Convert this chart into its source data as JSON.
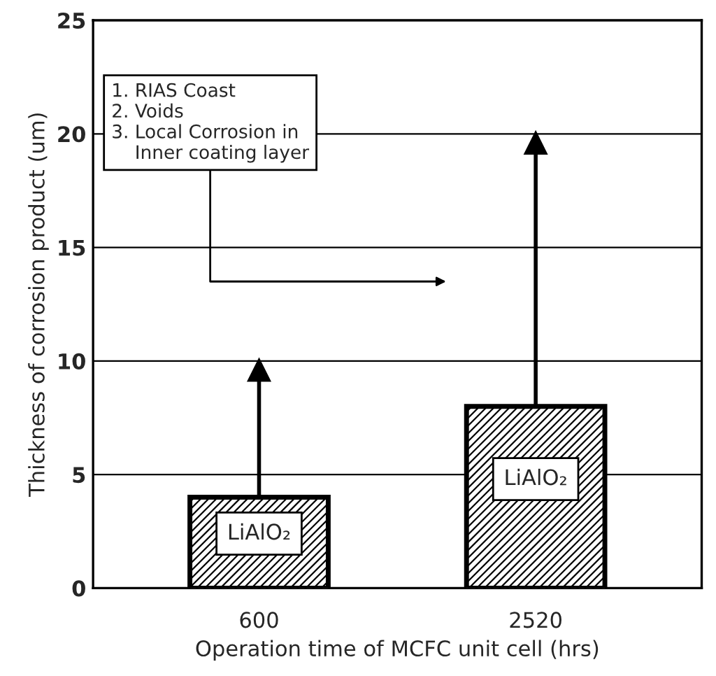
{
  "chart_data": {
    "type": "bar",
    "xlabel": "Operation time of MCFC unit cell (hrs)",
    "ylabel": "Thickness of corrosion product (um)",
    "categories": [
      "600",
      "2520"
    ],
    "values": [
      4,
      8
    ],
    "errors": [
      [
        4,
        10
      ],
      [
        8,
        20
      ]
    ],
    "color": "#000000",
    "ylim": [
      0,
      25
    ],
    "yticks": [
      0,
      5,
      10,
      15,
      20,
      25
    ],
    "grid": "y",
    "annotations": [
      "1. RIAS Coast\n2. Voids\n3. Local Corrosion in\n    Inner coating layer",
      "LiAlO₂",
      "LiAlO₂"
    ]
  }
}
